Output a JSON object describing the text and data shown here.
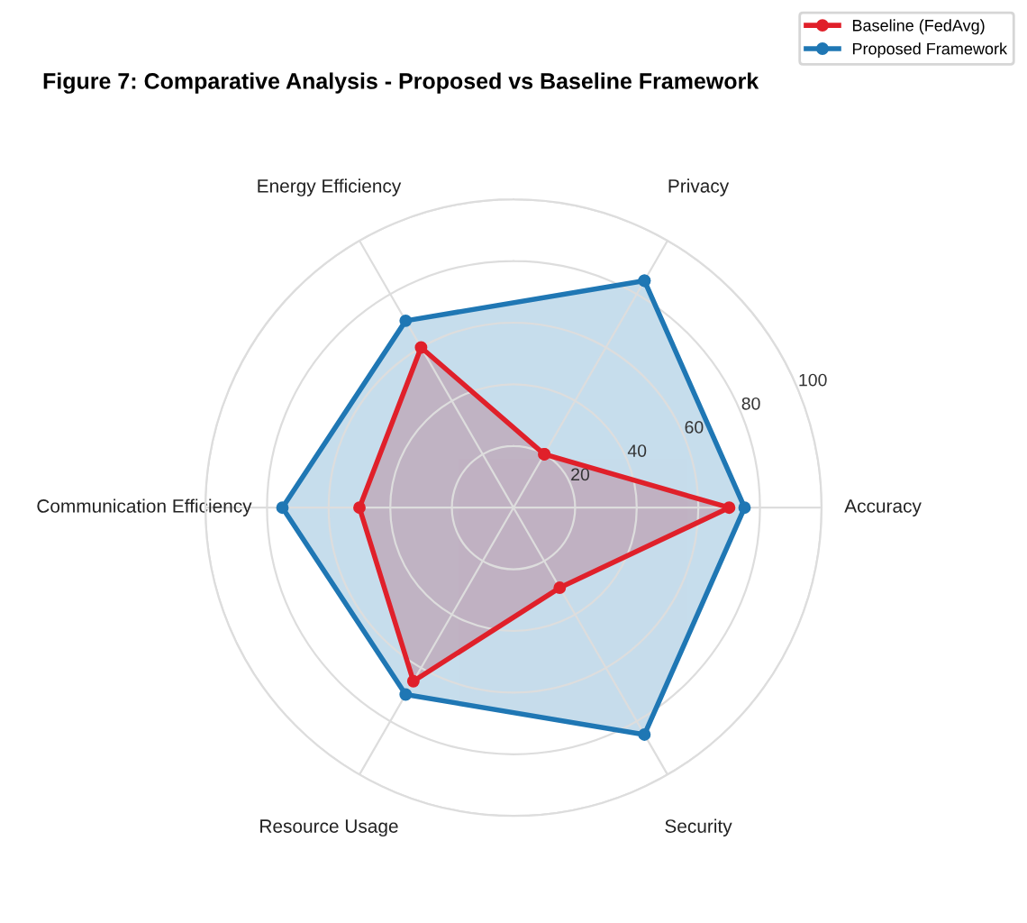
{
  "chart_data": {
    "type": "radar",
    "title": "Figure 7: Comparative Analysis - Proposed vs Baseline Framework",
    "categories": [
      "Privacy",
      "Accuracy",
      "Security",
      "Resource Usage",
      "Communication Efficiency",
      "Energy Efficiency"
    ],
    "series": [
      {
        "name": "Baseline (FedAvg)",
        "color": "#e0202a",
        "values": [
          20,
          70,
          30,
          65,
          50,
          60
        ]
      },
      {
        "name": "Proposed Framework",
        "color": "#1f77b4",
        "values": [
          85,
          75,
          85,
          70,
          75,
          70
        ]
      }
    ],
    "ylim": [
      0,
      100
    ],
    "yticks": [
      20,
      40,
      60,
      80,
      100
    ],
    "grid": true,
    "legend": "top right",
    "marker": "circle",
    "line_style": "solid"
  }
}
